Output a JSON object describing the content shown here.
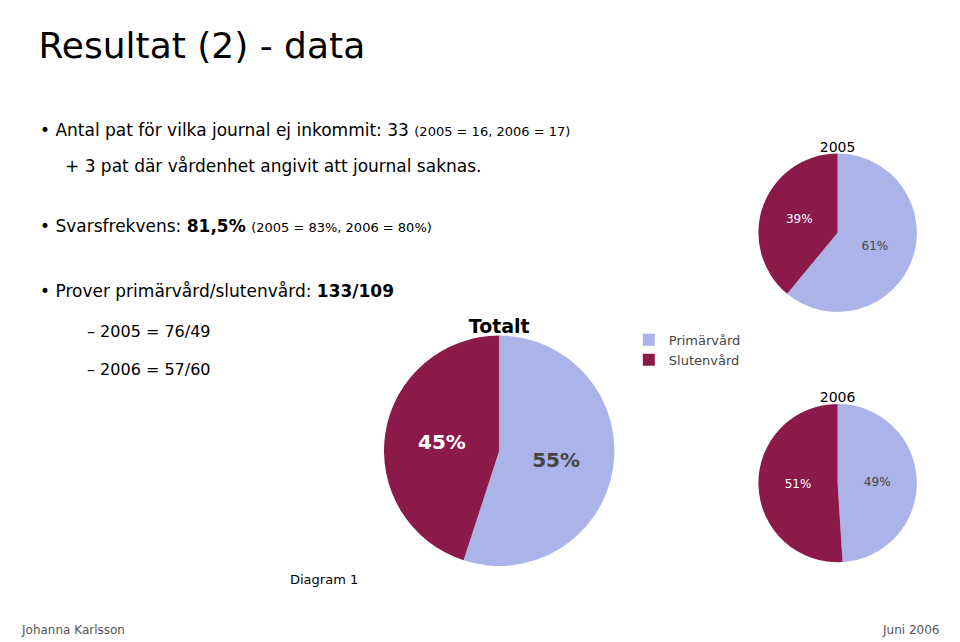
{
  "title": "Resultat (2) - data",
  "annotations": [
    "• Antal pat för vilka journal ej inkommit: 33",
    "(2005 = 16, 2006 = 17)",
    "+ 3 pat där vårdenhet angivit att journal saknas.",
    "• Svarsfrekvens:",
    "81,5%",
    "(2005 = 83%, 2006 = 80%)",
    "• Prover primärvård/slutenvård:",
    "133/109",
    "– 2005 = 76/49",
    "– 2006 = 57/60",
    "Diagram 1",
    "Johanna Karlsson",
    "Juni 2006"
  ],
  "chart_data": [
    {
      "type": "pie",
      "title": "Totalt",
      "categories": [
        "Primärvård",
        "Slutenvård"
      ],
      "values": [
        55,
        45
      ],
      "value_labels": [
        "55%",
        "45%"
      ],
      "colors": [
        "#aab4e8",
        "#8b1a4a"
      ],
      "data_labels": true,
      "legend": "right"
    },
    {
      "type": "pie",
      "title": "2005",
      "categories": [
        "Primärvård",
        "Slutenvård"
      ],
      "values": [
        61,
        39
      ],
      "value_labels": [
        "61%",
        "39%"
      ],
      "colors": [
        "#aab4e8",
        "#8b1a4a"
      ],
      "data_labels": true,
      "legend": "right"
    },
    {
      "type": "pie",
      "title": "2006",
      "categories": [
        "Primärvård",
        "Slutenvård"
      ],
      "values": [
        49,
        51
      ],
      "value_labels": [
        "49%",
        "51%"
      ],
      "colors": [
        "#aab4e8",
        "#8b1a4a"
      ],
      "data_labels": true,
      "legend": "right"
    }
  ]
}
